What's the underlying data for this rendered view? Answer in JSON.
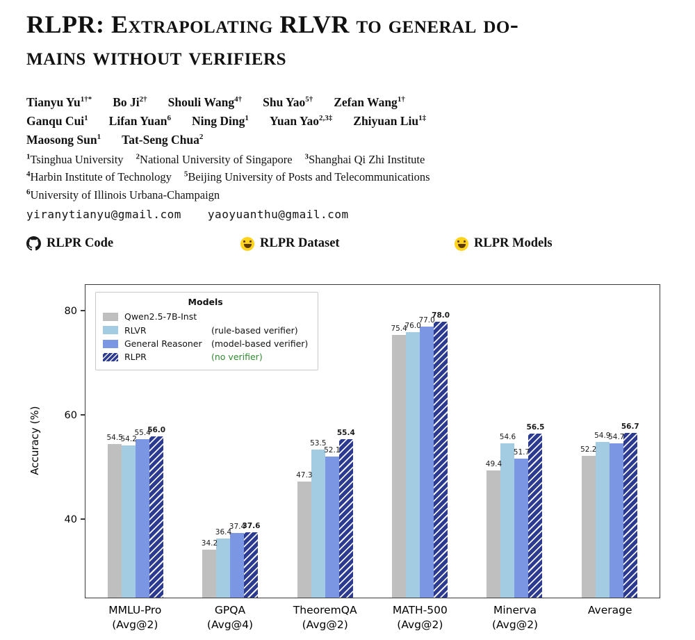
{
  "paper": {
    "title_line1": "RLPR: Extrapolating RLVR to general do-",
    "title_line2": "mains without verifiers",
    "author_rows": [
      [
        {
          "name": "Tianyu Yu",
          "sup": "1†*"
        },
        {
          "name": "Bo Ji",
          "sup": "2†"
        },
        {
          "name": "Shouli Wang",
          "sup": "4†"
        },
        {
          "name": "Shu Yao",
          "sup": "5†"
        },
        {
          "name": "Zefan Wang",
          "sup": "1†"
        }
      ],
      [
        {
          "name": "Ganqu Cui",
          "sup": "1"
        },
        {
          "name": "Lifan Yuan",
          "sup": "6"
        },
        {
          "name": "Ning Ding",
          "sup": "1"
        },
        {
          "name": "Yuan Yao",
          "sup": "2,3‡"
        },
        {
          "name": "Zhiyuan Liu",
          "sup": "1‡"
        }
      ],
      [
        {
          "name": "Maosong Sun",
          "sup": "1"
        },
        {
          "name": "Tat-Seng Chua",
          "sup": "2"
        }
      ]
    ],
    "affiliation_rows": [
      [
        {
          "sup": "1",
          "name": "Tsinghua University"
        },
        {
          "sup": "2",
          "name": "National University of Singapore"
        },
        {
          "sup": "3",
          "name": "Shanghai Qi Zhi Institute"
        }
      ],
      [
        {
          "sup": "4",
          "name": "Harbin Institute of Technology"
        },
        {
          "sup": "5",
          "name": "Beijing University of Posts and Telecommunications"
        }
      ],
      [
        {
          "sup": "6",
          "name": "University of Illinois Urbana-Champaign"
        }
      ]
    ],
    "emails": [
      "yiranytianyu@gmail.com",
      "yaoyuanthu@gmail.com"
    ],
    "links": [
      {
        "icon": "github-icon",
        "label": "RLPR Code"
      },
      {
        "icon": "huggingface-icon",
        "label": "RLPR Dataset"
      },
      {
        "icon": "huggingface-icon",
        "label": "RLPR Models"
      }
    ]
  },
  "chart_data": {
    "type": "bar",
    "title": "",
    "xlabel": "",
    "ylabel": "Accuracy (%)",
    "ylim": [
      25,
      85
    ],
    "yticks": [
      40,
      60,
      80
    ],
    "grid": false,
    "legend_title": "Models",
    "legend_position": "upper-left",
    "categories": [
      "MMLU-Pro",
      "GPQA",
      "TheoremQA",
      "MATH-500",
      "Minerva",
      "Average"
    ],
    "category_notes": [
      "(Avg@2)",
      "(Avg@4)",
      "(Avg@2)",
      "(Avg@2)",
      "(Avg@2)",
      ""
    ],
    "series": [
      {
        "name": "Qwen2.5-7B-Inst",
        "note": "",
        "color": "#bfbfbf",
        "hatch": false,
        "bold_labels": false,
        "values": [
          54.5,
          34.2,
          47.3,
          75.4,
          49.4,
          52.2
        ]
      },
      {
        "name": "RLVR",
        "note": "(rule-based verifier)",
        "color": "#a3cce3",
        "hatch": false,
        "bold_labels": false,
        "values": [
          54.2,
          36.4,
          53.5,
          76.0,
          54.6,
          54.9
        ]
      },
      {
        "name": "General Reasoner",
        "note": "(model-based verifier)",
        "color": "#7b97e3",
        "hatch": false,
        "bold_labels": false,
        "values": [
          55.4,
          37.4,
          52.1,
          77.0,
          51.7,
          54.7
        ]
      },
      {
        "name": "RLPR",
        "note": "(no verifier)",
        "note_color": "#2e8b2e",
        "color": "#2c3a8f",
        "hatch": true,
        "bold_labels": true,
        "values": [
          56.0,
          37.6,
          55.4,
          78.0,
          56.5,
          56.7
        ]
      }
    ]
  }
}
